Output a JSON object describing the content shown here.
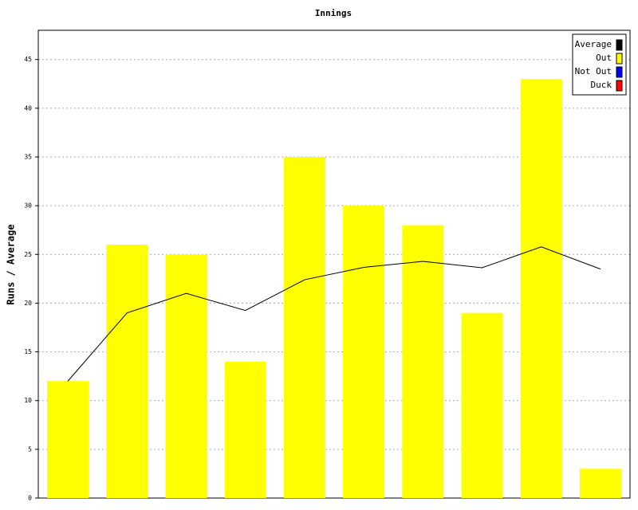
{
  "chart_data": {
    "type": "bar",
    "title": "Innings",
    "y_label": "Runs / Average",
    "categories": [
      null,
      null,
      null,
      null,
      null,
      null,
      null,
      null,
      null,
      null
    ],
    "series": [
      {
        "name": "Average",
        "color": "#000000",
        "type": "line",
        "values": [
          12,
          19,
          21,
          19.25,
          22.4,
          23.67,
          24.29,
          23.63,
          25.78,
          23.5
        ]
      },
      {
        "name": "Out",
        "color": "#ffff00",
        "type": "bar",
        "values": [
          12,
          26,
          25,
          14,
          35,
          30,
          28,
          19,
          43,
          3
        ]
      },
      {
        "name": "Not Out",
        "color": "#0000ff",
        "type": "bar",
        "values": [
          null,
          null,
          null,
          null,
          null,
          null,
          null,
          null,
          null,
          null
        ]
      },
      {
        "name": "Duck",
        "color": "#ff0000",
        "type": "bar",
        "values": [
          null,
          null,
          null,
          null,
          null,
          null,
          null,
          null,
          null,
          null
        ]
      }
    ],
    "ylim": [
      0,
      48
    ],
    "yticks": [
      0,
      5,
      10,
      15,
      20,
      25,
      30,
      35,
      40,
      45
    ],
    "grid": true,
    "legend": "top-right"
  }
}
